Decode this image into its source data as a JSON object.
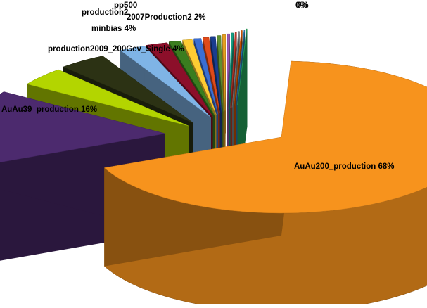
{
  "chart_data": {
    "type": "pie",
    "style": "3d-exploded",
    "legend": "none",
    "series": [
      {
        "label": "AuAu200_production",
        "percent_label": "68%",
        "value": 68,
        "color": "#f7931d"
      },
      {
        "label": "AuAu39_production",
        "percent_label": "16%",
        "value": 16,
        "color": "#4c2a6e"
      },
      {
        "label": "production2009_200Gev_Single",
        "percent_label": "4%",
        "value": 4,
        "color": "#b3d500"
      },
      {
        "label": "minbias",
        "percent_label": "4%",
        "value": 4,
        "color": "#2c3214"
      },
      {
        "label": "",
        "percent_label": "",
        "value": 2.2,
        "color": "#7fb4e6"
      },
      {
        "label": "2007Production2",
        "percent_label": "2%",
        "value": 1.8,
        "color": "#8c0f2a"
      },
      {
        "label": "",
        "percent_label": "",
        "value": 1.0,
        "color": "#3a7d1f"
      },
      {
        "label": "",
        "percent_label": "",
        "value": 0.8,
        "color": "#ffcc33"
      },
      {
        "label": "",
        "percent_label": "",
        "value": 0.6,
        "color": "#3b6fd4"
      },
      {
        "label": "",
        "percent_label": "",
        "value": 0.5,
        "color": "#e04a1a"
      },
      {
        "label": "",
        "percent_label": "",
        "value": 0.4,
        "color": "#1a3d8f"
      },
      {
        "label": "",
        "percent_label": "",
        "value": 0.3,
        "color": "#5f8f2f"
      },
      {
        "label": "",
        "percent_label": "",
        "value": 0.25,
        "color": "#e6a020"
      },
      {
        "label": "",
        "percent_label": "",
        "value": 0.2,
        "color": "#9b59b6"
      },
      {
        "label": "",
        "percent_label": "",
        "value": 0.15,
        "color": "#16a085"
      },
      {
        "label": "",
        "percent_label": "",
        "value": 0.12,
        "color": "#c0392b"
      },
      {
        "label": "",
        "percent_label": "",
        "value": 0.1,
        "color": "#7f8c8d"
      },
      {
        "label": "",
        "percent_label": "",
        "value": 0.08,
        "color": "#d35400"
      },
      {
        "label": "",
        "percent_label": "",
        "value": 0.06,
        "color": "#2980b9"
      },
      {
        "label": "",
        "percent_label": "",
        "value": 0.05,
        "color": "#27ae60"
      }
    ],
    "extra_labels": [
      {
        "text": "production2"
      },
      {
        "text": "pp500"
      },
      {
        "text": "0%"
      },
      {
        "text": "0%"
      }
    ]
  }
}
